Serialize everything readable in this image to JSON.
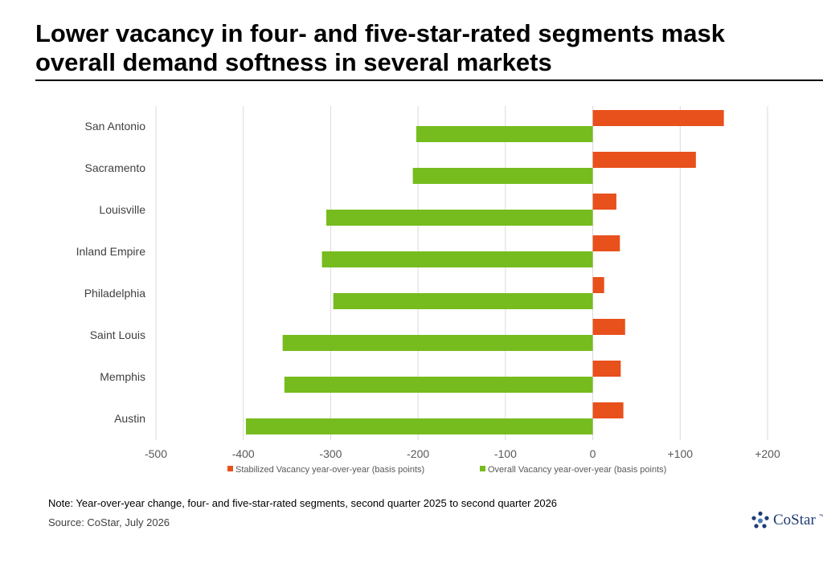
{
  "title": "Lower vacancy in four- and five-star-rated segments mask overall demand softness in several markets",
  "note": "Note: Year-over-year change, four- and five-star-rated segments, second quarter 2025 to second quarter 2026",
  "source": "Source: CoStar, July 2026",
  "logo": {
    "text": "CoStar",
    "tm": "™",
    "icon": "costar-star-logo-icon"
  },
  "colors": {
    "stabilized": "#E8501C",
    "overall": "#76BC1E",
    "grid": "#D9D9D9"
  },
  "chart_data": {
    "type": "bar",
    "orientation": "horizontal",
    "categories": [
      "San Antonio",
      "Sacramento",
      "Louisville",
      "Inland Empire",
      "Philadelphia",
      "Saint Louis",
      "Memphis",
      "Austin"
    ],
    "series": [
      {
        "name": "Stabilized Vacancy year-over-year (basis points)",
        "color": "#E8501C",
        "values": [
          150,
          118,
          27,
          31,
          13,
          37,
          32,
          35
        ]
      },
      {
        "name": "Overall Vacancy year-over-year (basis points)",
        "color": "#76BC1E",
        "values": [
          -202,
          -206,
          -305,
          -310,
          -297,
          -355,
          -353,
          -397
        ]
      }
    ],
    "xlim": [
      -500,
      200
    ],
    "xticks": [
      -500,
      -400,
      -300,
      -200,
      -100,
      0,
      100,
      200
    ],
    "xtick_labels": [
      "-500",
      "-400",
      "-300",
      "-200",
      "-100",
      "0",
      "+100",
      "+200"
    ],
    "grid": true,
    "legend_position": "bottom"
  }
}
